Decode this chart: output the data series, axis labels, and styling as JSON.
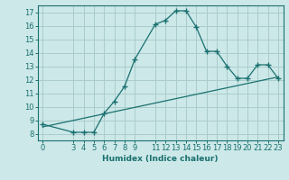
{
  "xlabel": "Humidex (Indice chaleur)",
  "background_color": "#cce8e8",
  "grid_color": "#aacccc",
  "line_color": "#1a7070",
  "x_ticks": [
    0,
    3,
    4,
    5,
    6,
    7,
    8,
    9,
    11,
    12,
    13,
    14,
    15,
    16,
    17,
    18,
    19,
    20,
    21,
    22,
    23
  ],
  "ylim": [
    7.5,
    17.5
  ],
  "xlim": [
    -0.5,
    23.5
  ],
  "curve1_x": [
    0,
    3,
    4,
    5,
    6,
    7,
    8,
    9,
    11,
    12,
    13,
    14,
    15,
    16,
    17,
    18,
    19,
    20,
    21,
    22,
    23
  ],
  "curve1_y": [
    8.7,
    8.1,
    8.1,
    8.1,
    9.5,
    10.4,
    11.5,
    13.5,
    16.1,
    16.4,
    17.1,
    17.1,
    15.9,
    14.1,
    14.1,
    13.0,
    12.1,
    12.1,
    13.1,
    13.1,
    12.1
  ],
  "curve2_x": [
    0,
    23
  ],
  "curve2_y": [
    8.5,
    12.2
  ],
  "yticks": [
    8,
    9,
    10,
    11,
    12,
    13,
    14,
    15,
    16,
    17
  ]
}
